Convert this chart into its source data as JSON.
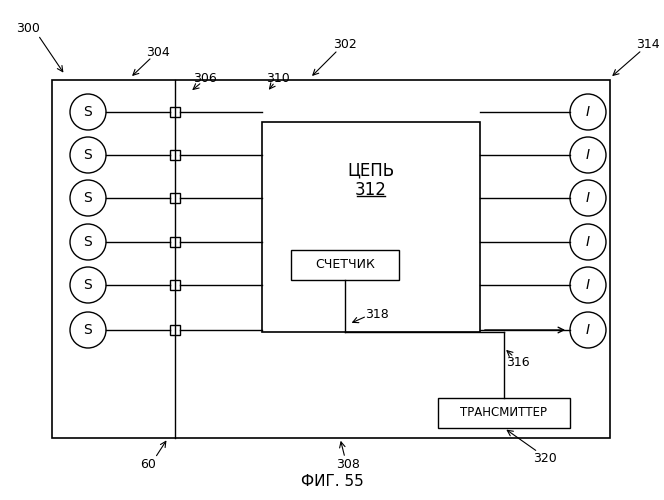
{
  "fig_label": "ФИГ. 55",
  "bg_color": "#ffffff",
  "label_300": "300",
  "label_302": "302",
  "label_304": "304",
  "label_306": "306",
  "label_308": "308",
  "label_310": "310",
  "label_314": "314",
  "label_316": "316",
  "label_318": "318",
  "label_320": "320",
  "label_60": "60",
  "circuit_label": "ЦЕПЬ",
  "circuit_num": "312",
  "counter_label": "СЧЕТЧИК",
  "transmitter_label": "ТРАНСМИТТЕР",
  "s_labels": [
    "S",
    "S",
    "S",
    "S",
    "S",
    "S"
  ],
  "i_labels": [
    "I",
    "I",
    "I",
    "I",
    "I",
    "I"
  ],
  "num_rows": 6,
  "line_color": "#000000",
  "font_size_labels": 9,
  "font_size_circle": 10,
  "font_size_fig": 11
}
